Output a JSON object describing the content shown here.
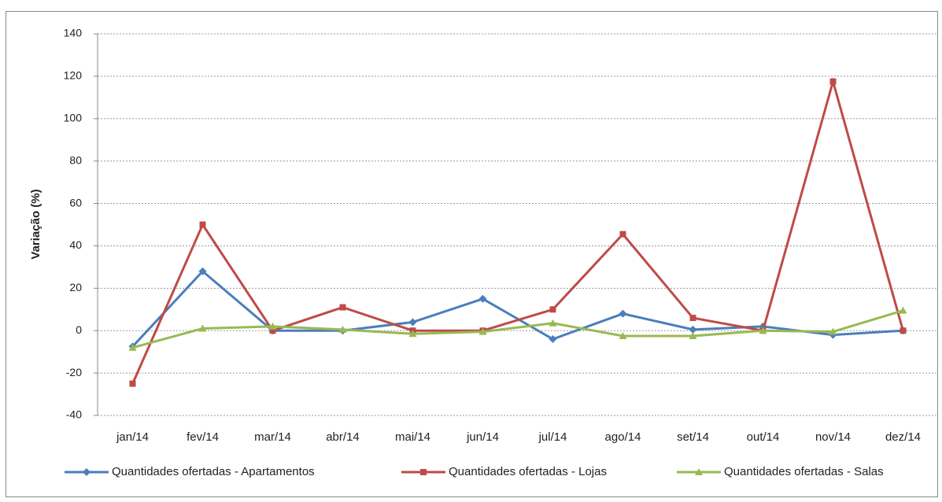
{
  "chart_data": {
    "type": "line",
    "y_label": "Variação (%)",
    "categories": [
      "jan/14",
      "fev/14",
      "mar/14",
      "abr/14",
      "mai/14",
      "jun/14",
      "jul/14",
      "ago/14",
      "set/14",
      "out/14",
      "nov/14",
      "dez/14"
    ],
    "series": [
      {
        "name": "Quantidades ofertadas - Apartamentos",
        "color": "#4a7ebb",
        "marker": "diamond",
        "values": [
          -7.5,
          28,
          0,
          0,
          4,
          15,
          -4,
          8,
          0.5,
          2,
          -2,
          0
        ]
      },
      {
        "name": "Quantidades ofertadas - Lojas",
        "color": "#be4b48",
        "marker": "square",
        "values": [
          -25,
          50,
          0,
          11,
          0,
          0,
          10,
          45.5,
          6,
          0,
          117.5,
          0
        ]
      },
      {
        "name": "Quantidades ofertadas - Salas",
        "color": "#98b954",
        "marker": "triangle",
        "values": [
          -8,
          1,
          2,
          0.5,
          -1.5,
          -0.5,
          3.5,
          -2.5,
          -2.5,
          0,
          -0.5,
          9.5
        ]
      }
    ],
    "ylim": [
      -40,
      140
    ],
    "yticks": [
      -40,
      -20,
      0,
      20,
      40,
      60,
      80,
      100,
      120,
      140
    ],
    "grid": true,
    "legend": "bottom"
  }
}
